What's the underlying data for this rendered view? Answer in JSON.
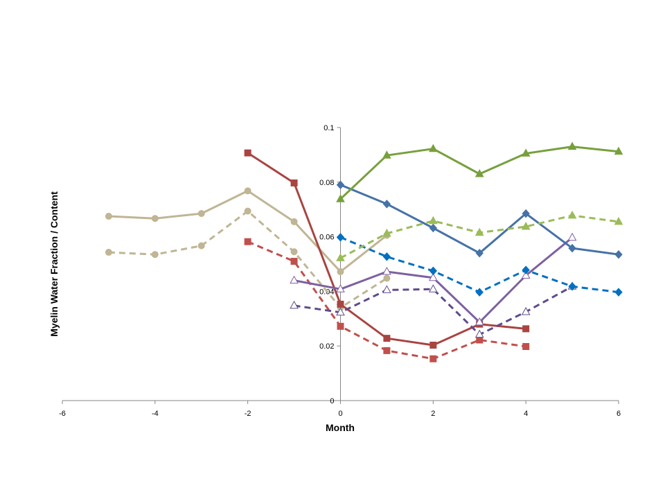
{
  "chart_data": {
    "type": "line",
    "title": "",
    "xlabel": "Month",
    "ylabel": "Myelin Water Fraction / Content",
    "xlim": [
      -6,
      6
    ],
    "ylim": [
      0,
      0.1
    ],
    "xticks": [
      "-6",
      "-4",
      "-2",
      "0",
      "2",
      "4",
      "6"
    ],
    "yticks": [
      "0",
      "0.02",
      "0.04",
      "0.06",
      "0.08",
      "0.1"
    ],
    "grid": false,
    "legend": "none",
    "series": [
      {
        "color": "#C0B594",
        "dash": false,
        "marker": "circle",
        "x": [
          -5,
          -4,
          -3,
          -2,
          -1,
          0,
          1
        ],
        "y": [
          0.0675,
          0.0667,
          0.0685,
          0.0768,
          0.0655,
          0.0472,
          0.0605
        ]
      },
      {
        "color": "#C0B594",
        "dash": true,
        "marker": "circle",
        "x": [
          -5,
          -4,
          -3,
          -2,
          -1,
          0,
          1
        ],
        "y": [
          0.0543,
          0.0535,
          0.0567,
          0.0694,
          0.0545,
          0.034,
          0.0448
        ]
      },
      {
        "color": "#A94442",
        "dash": false,
        "marker": "square",
        "x": [
          -2,
          -1,
          0,
          1,
          2,
          3,
          4
        ],
        "y": [
          0.0907,
          0.0797,
          0.0353,
          0.0228,
          0.0203,
          0.028,
          0.0263
        ]
      },
      {
        "color": "#C0504D",
        "dash": true,
        "marker": "square",
        "x": [
          -2,
          -1,
          0,
          1,
          2,
          3,
          4
        ],
        "y": [
          0.0582,
          0.051,
          0.0272,
          0.0183,
          0.0153,
          0.0222,
          0.0198
        ]
      },
      {
        "color": "#7D60A0",
        "dash": false,
        "marker": "open-triangle",
        "x": [
          -1,
          0,
          1,
          2,
          3,
          4,
          5
        ],
        "y": [
          0.044,
          0.0408,
          0.0472,
          0.045,
          0.0287,
          0.0458,
          0.0597
        ]
      },
      {
        "color": "#5F4B8B",
        "dash": true,
        "marker": "open-triangle",
        "x": [
          -1,
          0,
          1,
          2,
          3,
          4,
          5
        ],
        "y": [
          0.0348,
          0.0323,
          0.0405,
          0.0408,
          0.0242,
          0.0325,
          0.0418
        ]
      },
      {
        "color": "#4572A7",
        "dash": false,
        "marker": "diamond",
        "x": [
          0,
          1,
          2,
          3,
          4,
          5,
          6
        ],
        "y": [
          0.079,
          0.072,
          0.0632,
          0.054,
          0.0685,
          0.0558,
          0.0535
        ]
      },
      {
        "color": "#0070C0",
        "dash": true,
        "marker": "diamond",
        "x": [
          0,
          1,
          2,
          3,
          4,
          5,
          6
        ],
        "y": [
          0.0598,
          0.0527,
          0.0475,
          0.0397,
          0.0478,
          0.0418,
          0.0397
        ]
      },
      {
        "color": "#77A03C",
        "dash": false,
        "marker": "triangle",
        "x": [
          0,
          1,
          2,
          3,
          4,
          5,
          6
        ],
        "y": [
          0.0738,
          0.0898,
          0.0922,
          0.083,
          0.0905,
          0.093,
          0.0912
        ]
      },
      {
        "color": "#9BBB59",
        "dash": true,
        "marker": "triangle",
        "x": [
          0,
          1,
          2,
          3,
          4,
          5,
          6
        ],
        "y": [
          0.0522,
          0.0612,
          0.0658,
          0.0615,
          0.0637,
          0.0678,
          0.0655
        ]
      }
    ]
  }
}
